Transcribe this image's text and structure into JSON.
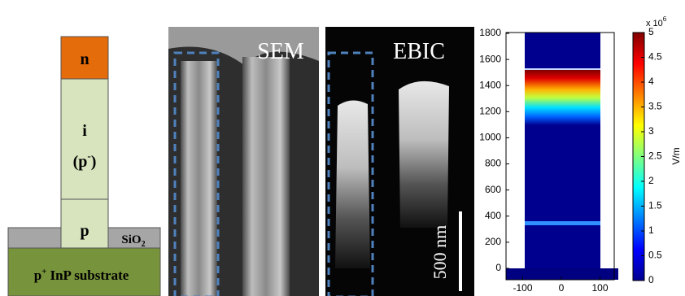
{
  "schematic": {
    "n": "n",
    "i": "i",
    "p_minus": {
      "text": "(p",
      "sup": "-",
      "close": ")"
    },
    "p": "p",
    "sio2": {
      "text": "SiO",
      "sub": "2"
    },
    "substrate": {
      "text": "p",
      "sup": "+",
      "rest": "InP substrate"
    }
  },
  "sem": {
    "label": "SEM"
  },
  "ebic": {
    "label": "EBIC",
    "scale_bar": "500 nm"
  },
  "field_map": {
    "yticks": [
      0,
      200,
      400,
      600,
      800,
      1000,
      1200,
      1400,
      1600,
      1800
    ],
    "xticks": [
      -100,
      0,
      100
    ],
    "colorbar": {
      "ticks": [
        0,
        0.5,
        1,
        1.5,
        2,
        2.5,
        3,
        3.5,
        4,
        4.5,
        5
      ],
      "exponent_base": "x 10",
      "exponent": "6",
      "unit": "V/m"
    }
  }
}
